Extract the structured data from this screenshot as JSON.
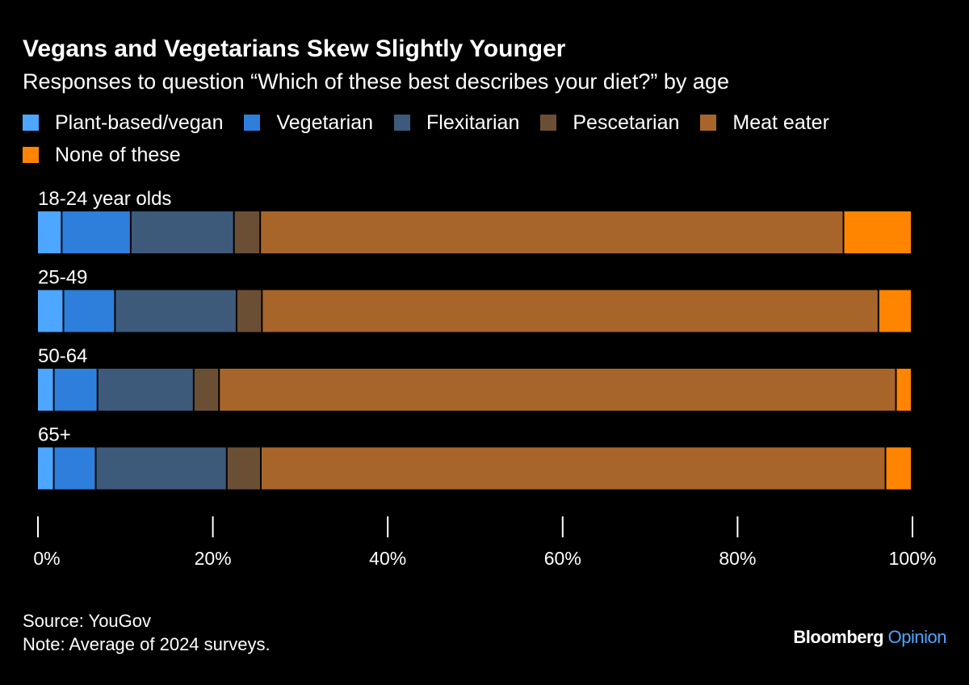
{
  "title": "Vegans and Vegetarians Skew Slightly Younger",
  "subtitle": "Responses to question “Which of these best describes your diet?” by age",
  "footer": {
    "source": "Source: YouGov",
    "note": "Note: Average of 2024 surveys."
  },
  "logo": {
    "brand": "Bloomberg",
    "section": "Opinion"
  },
  "chart_data": {
    "type": "bar",
    "orientation": "horizontal",
    "stacked": true,
    "categories": [
      "18-24 year olds",
      "25-49",
      "50-64",
      "65+"
    ],
    "series": [
      {
        "name": "Plant-based/vegan",
        "color": "#4da6ff",
        "values": [
          2.8,
          3.0,
          1.9,
          1.9
        ]
      },
      {
        "name": "Vegetarian",
        "color": "#2d7fdb",
        "values": [
          7.9,
          5.9,
          5.0,
          4.8
        ]
      },
      {
        "name": "Flexitarian",
        "color": "#3d5a7a",
        "values": [
          11.8,
          13.9,
          11.0,
          15.0
        ]
      },
      {
        "name": "Pescetarian",
        "color": "#6b4f35",
        "values": [
          3.0,
          2.9,
          2.9,
          3.9
        ]
      },
      {
        "name": "Meat eater",
        "color": "#a8652a",
        "values": [
          66.7,
          70.5,
          77.4,
          71.5
        ]
      },
      {
        "name": "None of these",
        "color": "#ff8500",
        "values": [
          7.8,
          3.8,
          1.8,
          3.0
        ]
      }
    ],
    "xlim": [
      0,
      100
    ],
    "xticks": [
      0,
      20,
      40,
      60,
      80,
      100
    ],
    "xtick_labels": [
      "0%",
      "20%",
      "40%",
      "60%",
      "80%",
      "100%"
    ],
    "grid": false,
    "legend_position": "top"
  }
}
